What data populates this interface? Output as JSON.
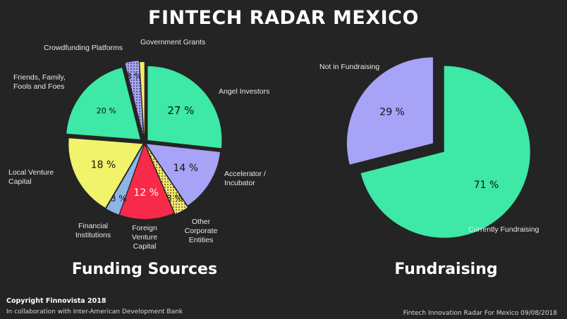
{
  "header": {
    "title": "FINTECH RADAR MEXICO"
  },
  "chart_data": [
    {
      "type": "pie",
      "title": "Funding Sources",
      "slices": [
        {
          "label": "Angel Investors",
          "value": 27,
          "value_label": "27 %",
          "color": "#3ee8a6"
        },
        {
          "label": "Accelerator / Incubator",
          "value": 14,
          "value_label": "14 %",
          "color": "#a7a3f7"
        },
        {
          "label": "Other Corporate Entities",
          "value": 3,
          "value_label": "3 %",
          "color": "#f4ea6e",
          "pattern": "dots"
        },
        {
          "label": "Foreign Venture Capital",
          "value": 12,
          "value_label": "12 %",
          "color": "#f72a4a"
        },
        {
          "label": "Financial Institutions",
          "value": 3,
          "value_label": "3 %",
          "color": "#8fb5e6"
        },
        {
          "label": "Local Venture Capital",
          "value": 18,
          "value_label": "18 %",
          "color": "#f1f36a"
        },
        {
          "label": "Friends, Family, Fools and Foes",
          "value": 20,
          "value_label": "20 %",
          "color": "#3ee8a6"
        },
        {
          "label": "Crowdfunding Platforms",
          "value": 3,
          "value_label": "3 %",
          "color": "#a7a3f7",
          "pattern": "dots"
        },
        {
          "label": "Government Grants",
          "value": 1,
          "value_label": "",
          "color": "#f4ea6e"
        }
      ]
    },
    {
      "type": "pie",
      "title": "Fundraising",
      "slices": [
        {
          "label": "Currently Fundraising",
          "value": 71,
          "value_label": "71 %",
          "color": "#3ee8a6"
        },
        {
          "label": "Not in Fundraising",
          "value": 29,
          "value_label": "29 %",
          "color": "#a7a3f7"
        }
      ]
    }
  ],
  "footer": {
    "copyright": "Copyright Finnovista 2018",
    "collaboration": "In collaboration with Inter-American Development Bank",
    "source": "Fintech Innovation Radar For Mexico 09/08/2018"
  }
}
